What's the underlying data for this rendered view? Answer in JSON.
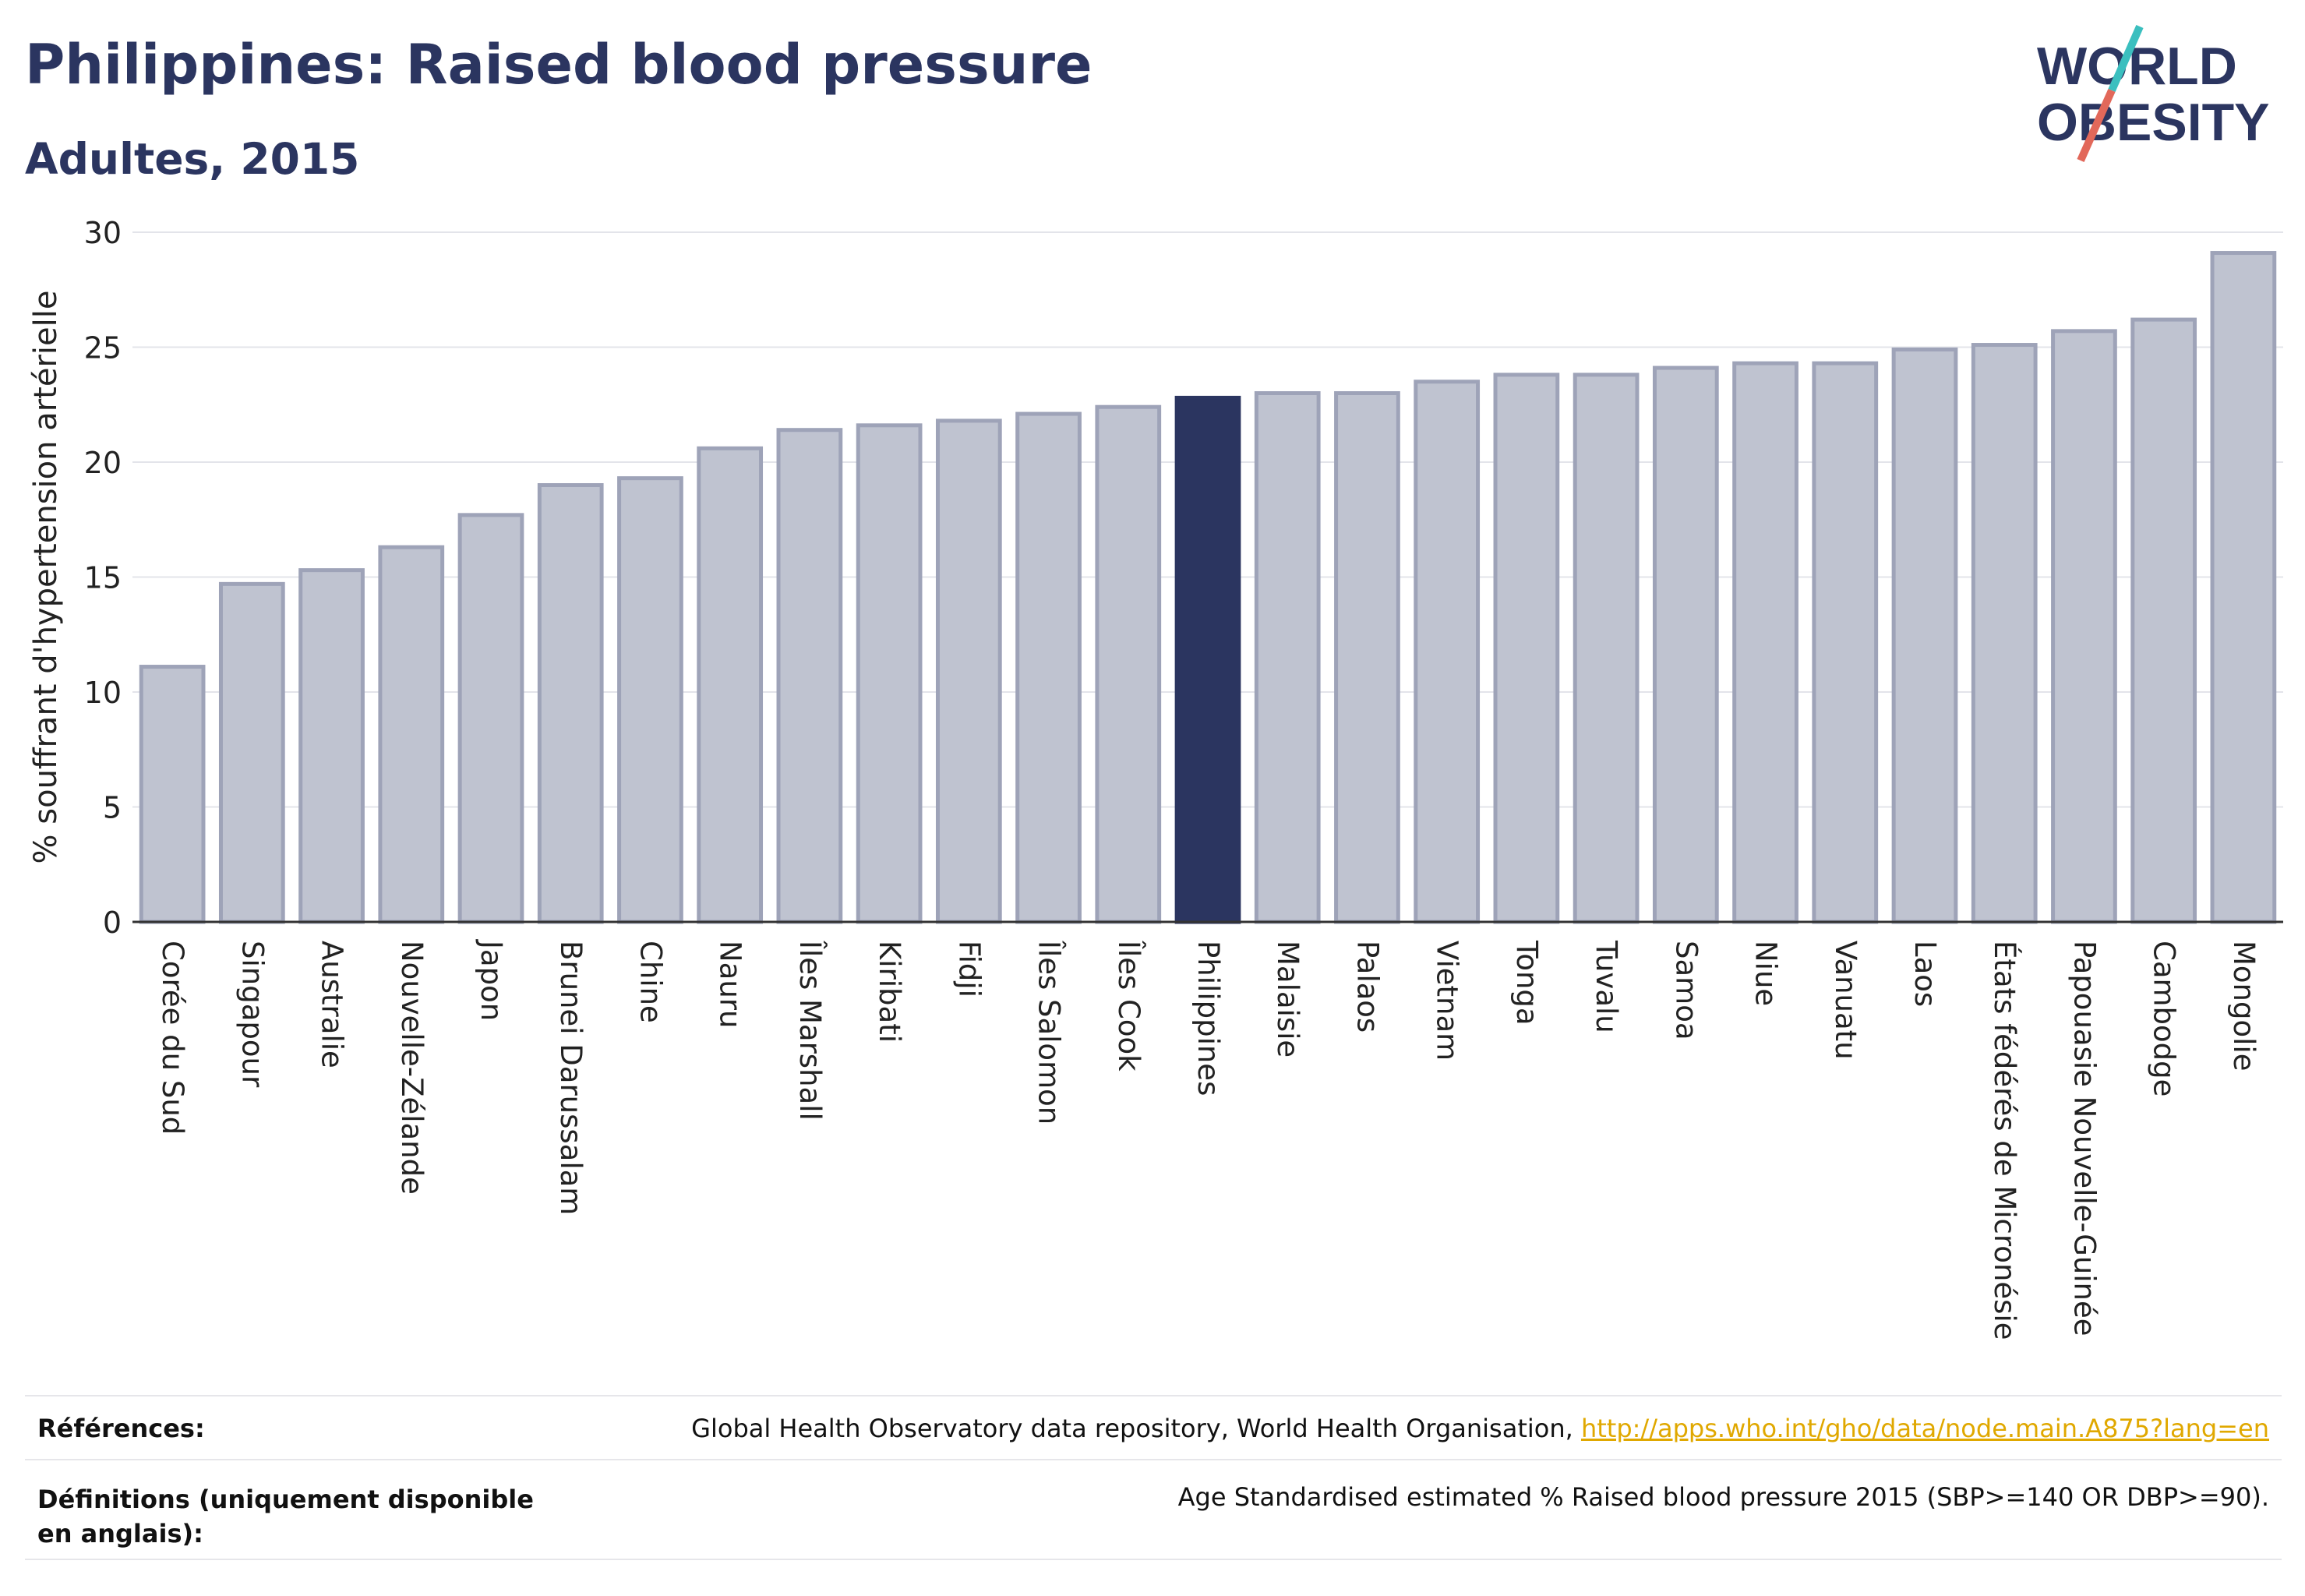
{
  "header": {
    "title": "Philippines: Raised blood pressure",
    "subtitle": "Adultes, 2015"
  },
  "logo": {
    "line1": "WORLD",
    "line2": "OBESITY"
  },
  "colors": {
    "highlight": "#2b3560",
    "bar_fill": "#bfc3d0",
    "bar_stroke": "#9ea3b8",
    "accent_teal": "#3bbfbf",
    "accent_red": "#e2685a",
    "link": "#e0a800"
  },
  "chart_data": {
    "type": "bar",
    "ylabel": "% souffrant d'hypertension artérielle",
    "xlabel": "",
    "ylim": [
      0,
      30
    ],
    "yticks": [
      0,
      5,
      10,
      15,
      20,
      25,
      30
    ],
    "grid": true,
    "highlight": "Philippines",
    "categories": [
      "Corée du Sud",
      "Singapour",
      "Australie",
      "Nouvelle-Zélande",
      "Japon",
      "Brunei Darussalam",
      "Chine",
      "Nauru",
      "Îles Marshall",
      "Kiribati",
      "Fidji",
      "Îles Salomon",
      "Îles Cook",
      "Philippines",
      "Malaisie",
      "Palaos",
      "Vietnam",
      "Tonga",
      "Tuvalu",
      "Samoa",
      "Niue",
      "Vanuatu",
      "Laos",
      "États fédérés de Micronésie",
      "Papouasie Nouvelle-Guinée",
      "Cambodge",
      "Mongolie"
    ],
    "values": [
      11.1,
      14.7,
      15.3,
      16.3,
      17.7,
      19.0,
      19.3,
      20.6,
      21.4,
      21.6,
      21.8,
      22.1,
      22.4,
      22.8,
      23.0,
      23.0,
      23.5,
      23.8,
      23.8,
      24.1,
      24.3,
      24.3,
      24.9,
      25.1,
      25.7,
      26.2,
      29.1
    ]
  },
  "footer": {
    "references_label": "Références:",
    "references_text": "Global Health Observatory data repository, World Health Organisation, ",
    "references_link": "http://apps.who.int/gho/data/node.main.A875?lang=en",
    "definitions_label": "Définitions (uniquement disponible en anglais):",
    "definitions_text": "Age Standardised estimated % Raised blood pressure 2015 (SBP>=140 OR DBP>=90)."
  }
}
